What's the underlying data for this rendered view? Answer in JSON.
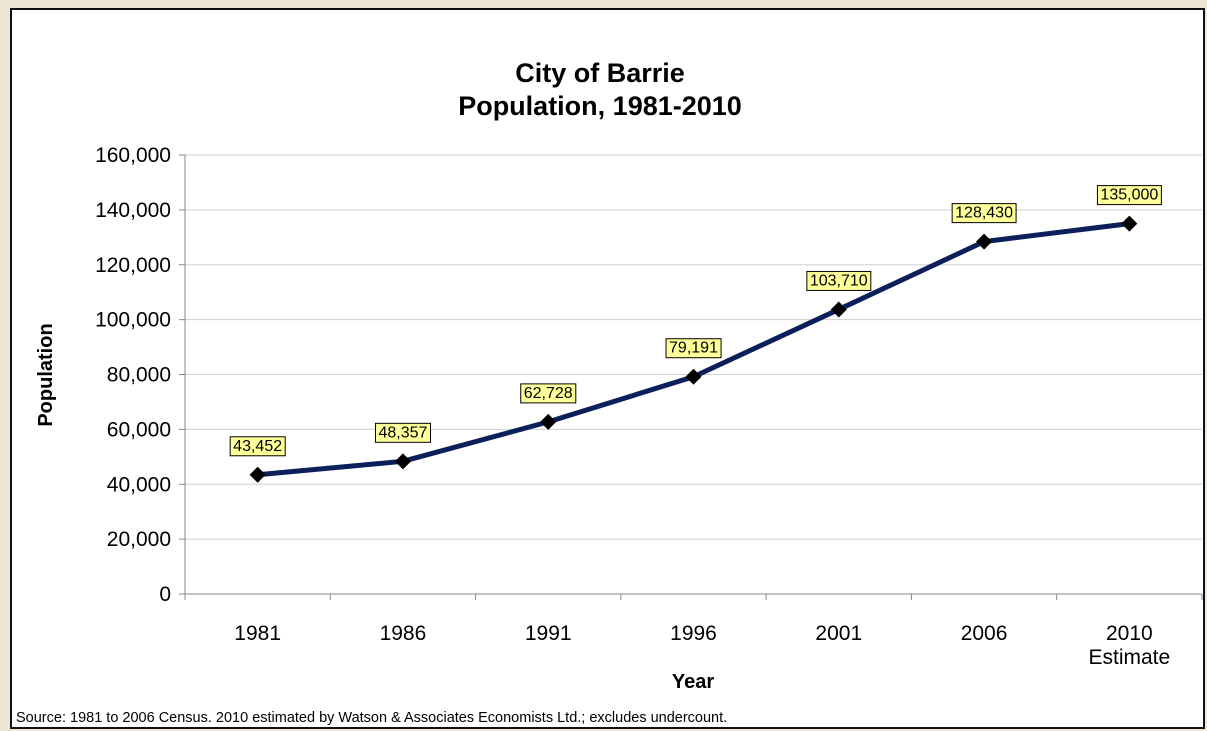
{
  "chart_data": {
    "type": "line",
    "title": "City of Barrie\nPopulation, 1981-2010",
    "categories": [
      "1981",
      "1986",
      "1991",
      "1996",
      "2001",
      "2006",
      "2010\nEstimate"
    ],
    "series": [
      {
        "name": "Population",
        "color": "#0b1f5a",
        "values": [
          43452,
          48357,
          62728,
          79191,
          103710,
          128430,
          135000
        ],
        "value_labels": [
          "43,452",
          "48,357",
          "62,728",
          "79,191",
          "103,710",
          "128,430",
          "135,000"
        ]
      }
    ],
    "ylim": [
      0,
      160000
    ],
    "yticks": [
      0,
      {
        "value": 20000,
        "label": "20,000"
      },
      {
        "value": 40000,
        "label": "40,000"
      },
      {
        "value": 60000,
        "label": "60,000"
      },
      {
        "value": 80000,
        "label": "80,000"
      },
      {
        "value": 100000,
        "label": "100,000"
      },
      {
        "value": 120000,
        "label": "120,000"
      },
      {
        "value": 140000,
        "label": "140,000"
      },
      {
        "value": 160000,
        "label": "160,000"
      }
    ],
    "xlabel": "Year",
    "ylabel": "Population",
    "grid": true,
    "source": "Source: 1981 to 2006 Census.  2010 estimated by Watson & Associates Economists Ltd.; excludes undercount."
  }
}
